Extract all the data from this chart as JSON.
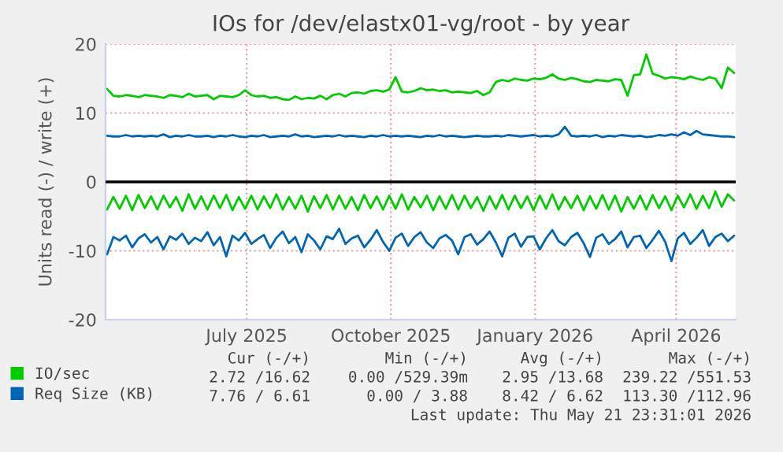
{
  "chart_data": {
    "type": "line",
    "title": "IOs for /dev/elastx01-vg/root - by year",
    "ylabel": "Units read (-) / write (+)",
    "x": [
      "2025-04-03",
      "2025-04-07",
      "2025-04-11",
      "2025-04-15",
      "2025-04-19",
      "2025-04-23",
      "2025-04-27",
      "2025-05-01",
      "2025-05-05",
      "2025-05-09",
      "2025-05-13",
      "2025-05-17",
      "2025-05-21",
      "2025-05-25",
      "2025-05-29",
      "2025-06-02",
      "2025-06-06",
      "2025-06-10",
      "2025-06-14",
      "2025-06-18",
      "2025-06-22",
      "2025-06-26",
      "2025-06-30",
      "2025-07-04",
      "2025-07-08",
      "2025-07-12",
      "2025-07-16",
      "2025-07-20",
      "2025-07-24",
      "2025-07-28",
      "2025-08-01",
      "2025-08-05",
      "2025-08-09",
      "2025-08-13",
      "2025-08-17",
      "2025-08-21",
      "2025-08-25",
      "2025-08-29",
      "2025-09-02",
      "2025-09-06",
      "2025-09-10",
      "2025-09-14",
      "2025-09-18",
      "2025-09-22",
      "2025-09-26",
      "2025-09-30",
      "2025-10-04",
      "2025-10-08",
      "2025-10-12",
      "2025-10-16",
      "2025-10-20",
      "2025-10-24",
      "2025-10-28",
      "2025-11-01",
      "2025-11-05",
      "2025-11-09",
      "2025-11-13",
      "2025-11-17",
      "2025-11-21",
      "2025-11-25",
      "2025-11-29",
      "2025-12-03",
      "2025-12-07",
      "2025-12-11",
      "2025-12-15",
      "2025-12-19",
      "2025-12-23",
      "2025-12-27",
      "2025-12-31",
      "2026-01-04",
      "2026-01-08",
      "2026-01-12",
      "2026-01-16",
      "2026-01-20",
      "2026-01-24",
      "2026-01-28",
      "2026-02-01",
      "2026-02-05",
      "2026-02-09",
      "2026-02-13",
      "2026-02-17",
      "2026-02-21",
      "2026-02-25",
      "2026-03-01",
      "2026-03-05",
      "2026-03-09",
      "2026-03-13",
      "2026-03-17",
      "2026-03-21",
      "2026-03-25",
      "2026-03-29",
      "2026-04-02",
      "2026-04-06",
      "2026-04-10",
      "2026-04-14",
      "2026-04-18",
      "2026-04-22",
      "2026-04-26",
      "2026-04-30",
      "2026-05-04",
      "2026-05-08"
    ],
    "series": [
      {
        "name": "IO/sec",
        "color": "#00cc00",
        "values": [
          13.5,
          12.5,
          12.4,
          12.6,
          12.5,
          12.3,
          12.6,
          12.5,
          12.4,
          12.2,
          12.6,
          12.5,
          12.3,
          12.8,
          12.4,
          12.5,
          12.6,
          12.0,
          12.5,
          12.4,
          12.3,
          12.6,
          13.3,
          12.6,
          12.4,
          12.5,
          12.2,
          12.3,
          12.0,
          11.9,
          12.4,
          12.0,
          12.2,
          12.1,
          12.5,
          12.0,
          12.6,
          12.8,
          12.4,
          12.9,
          13.0,
          12.8,
          13.2,
          13.3,
          13.1,
          13.4,
          15.2,
          13.1,
          13.0,
          13.2,
          13.6,
          13.3,
          13.4,
          13.2,
          13.3,
          13.0,
          13.1,
          13.0,
          12.9,
          13.2,
          12.6,
          13.0,
          14.5,
          14.8,
          14.6,
          15.0,
          14.8,
          14.7,
          15.0,
          14.9,
          15.1,
          15.6,
          15.0,
          14.8,
          15.1,
          14.9,
          14.6,
          14.5,
          14.8,
          14.7,
          14.6,
          14.9,
          14.8,
          12.5,
          15.5,
          15.6,
          18.5,
          15.7,
          15.4,
          15.0,
          15.2,
          15.1,
          14.9,
          15.3,
          15.0,
          14.8,
          15.2,
          15.0,
          13.6,
          16.6,
          15.8
        ]
      },
      {
        "color": "#00cc00",
        "values": [
          -4.0,
          -2.2,
          -3.9,
          -2.0,
          -4.1,
          -1.9,
          -3.8,
          -2.1,
          -4.0,
          -2.0,
          -3.7,
          -2.2,
          -4.2,
          -1.8,
          -3.9,
          -2.1,
          -4.0,
          -2.0,
          -3.8,
          -1.9,
          -4.1,
          -2.2,
          -3.9,
          -2.0,
          -4.0,
          -2.1,
          -3.8,
          -1.8,
          -4.0,
          -2.2,
          -3.9,
          -2.0,
          -4.3,
          -2.1,
          -3.8,
          -1.9,
          -4.0,
          -2.0,
          -3.9,
          -2.2,
          -4.1,
          -1.9,
          -3.8,
          -2.1,
          -4.0,
          -2.0,
          -3.9,
          -1.8,
          -4.0,
          -2.2,
          -3.7,
          -2.0,
          -4.1,
          -2.1,
          -3.9,
          -1.9,
          -4.0,
          -2.0,
          -3.8,
          -2.2,
          -4.2,
          -2.1,
          -3.9,
          -1.9,
          -4.0,
          -2.0,
          -3.8,
          -2.1,
          -4.1,
          -2.0,
          -3.9,
          -1.8,
          -4.0,
          -2.2,
          -3.8,
          -2.0,
          -4.1,
          -2.1,
          -3.9,
          -1.9,
          -4.0,
          -2.0,
          -4.3,
          -2.2,
          -3.9,
          -2.0,
          -4.0,
          -1.9,
          -3.8,
          -2.1,
          -4.1,
          -2.0,
          -3.7,
          -1.8,
          -3.9,
          -2.0,
          -3.8,
          -1.4,
          -3.6,
          -1.8,
          -2.7
        ]
      },
      {
        "name": "Req Size (KB)",
        "color": "#0066b3",
        "values": [
          6.7,
          6.6,
          6.6,
          6.8,
          6.6,
          6.7,
          6.6,
          6.7,
          6.6,
          6.9,
          6.5,
          6.7,
          6.6,
          6.8,
          6.6,
          6.6,
          6.7,
          6.5,
          6.7,
          6.6,
          6.8,
          6.6,
          6.5,
          6.7,
          6.6,
          6.8,
          6.5,
          6.6,
          6.7,
          6.6,
          6.9,
          6.6,
          6.7,
          6.5,
          6.6,
          6.7,
          6.6,
          6.8,
          6.6,
          6.7,
          6.6,
          6.5,
          6.7,
          6.6,
          6.8,
          6.6,
          6.7,
          6.6,
          6.7,
          6.6,
          6.5,
          6.7,
          6.6,
          6.8,
          6.6,
          6.7,
          6.6,
          6.5,
          6.6,
          6.7,
          6.6,
          6.6,
          6.7,
          6.6,
          6.8,
          6.7,
          6.6,
          6.7,
          6.8,
          6.6,
          6.7,
          6.6,
          6.9,
          8.0,
          6.7,
          6.6,
          6.7,
          6.6,
          6.8,
          6.5,
          6.7,
          6.6,
          6.8,
          6.7,
          6.6,
          6.7,
          6.5,
          6.6,
          6.8,
          6.7,
          6.9,
          6.7,
          7.2,
          6.8,
          7.4,
          6.9,
          6.8,
          6.7,
          6.6,
          6.6,
          6.5
        ]
      },
      {
        "color": "#0066b3",
        "values": [
          -10.5,
          -8.0,
          -8.5,
          -7.8,
          -9.5,
          -8.2,
          -7.6,
          -8.8,
          -8.0,
          -9.8,
          -7.9,
          -8.4,
          -7.5,
          -9.0,
          -8.1,
          -8.6,
          -7.3,
          -9.2,
          -8.0,
          -10.8,
          -7.8,
          -8.5,
          -7.4,
          -9.0,
          -8.3,
          -7.7,
          -9.6,
          -8.1,
          -7.2,
          -8.9,
          -8.0,
          -10.2,
          -7.6,
          -8.5,
          -9.8,
          -7.9,
          -8.3,
          -6.8,
          -9.0,
          -8.2,
          -7.8,
          -9.5,
          -8.4,
          -7.0,
          -8.7,
          -10.0,
          -8.1,
          -7.5,
          -9.3,
          -8.0,
          -7.3,
          -8.8,
          -9.6,
          -8.2,
          -7.7,
          -8.5,
          -10.5,
          -8.0,
          -7.6,
          -9.1,
          -8.3,
          -7.2,
          -8.8,
          -10.8,
          -8.1,
          -7.5,
          -9.4,
          -8.0,
          -7.9,
          -9.8,
          -8.2,
          -7.0,
          -8.6,
          -9.2,
          -8.0,
          -7.4,
          -8.9,
          -10.9,
          -8.1,
          -7.6,
          -9.0,
          -8.3,
          -7.2,
          -9.5,
          -8.0,
          -7.8,
          -9.6,
          -8.4,
          -7.1,
          -8.7,
          -11.5,
          -8.2,
          -7.4,
          -9.0,
          -8.1,
          -7.0,
          -9.3,
          -8.0,
          -7.5,
          -8.6,
          -7.8
        ]
      }
    ],
    "xlim": [
      "2025-04-02",
      "2026-05-09"
    ],
    "xticks": [
      {
        "value": "2025-07-01",
        "label": "July 2025"
      },
      {
        "value": "2025-10-01",
        "label": "October 2025"
      },
      {
        "value": "2026-01-01",
        "label": "January 2026"
      },
      {
        "value": "2026-04-01",
        "label": "April 2026"
      }
    ],
    "ylim": [
      -20,
      20
    ],
    "yticks": [
      -20,
      -10,
      0,
      10,
      20
    ],
    "ref_lines": [
      {
        "axis": "y",
        "value": 0,
        "color": "#000000"
      }
    ],
    "grid": true,
    "legend": "bottom",
    "annotations": [
      "Cur (-/+)",
      "Min (-/+)",
      "Avg (-/+)",
      "Max (-/+)",
      "2.72 /16.62",
      "0.00 /529.39m",
      "2.95 /13.68",
      "239.22 /551.53",
      "7.76 / 6.61",
      "0.00 / 3.88",
      "8.42 / 6.62",
      "113.30 /112.96",
      "Last update: Thu May 21 23:31:01 2026"
    ]
  }
}
